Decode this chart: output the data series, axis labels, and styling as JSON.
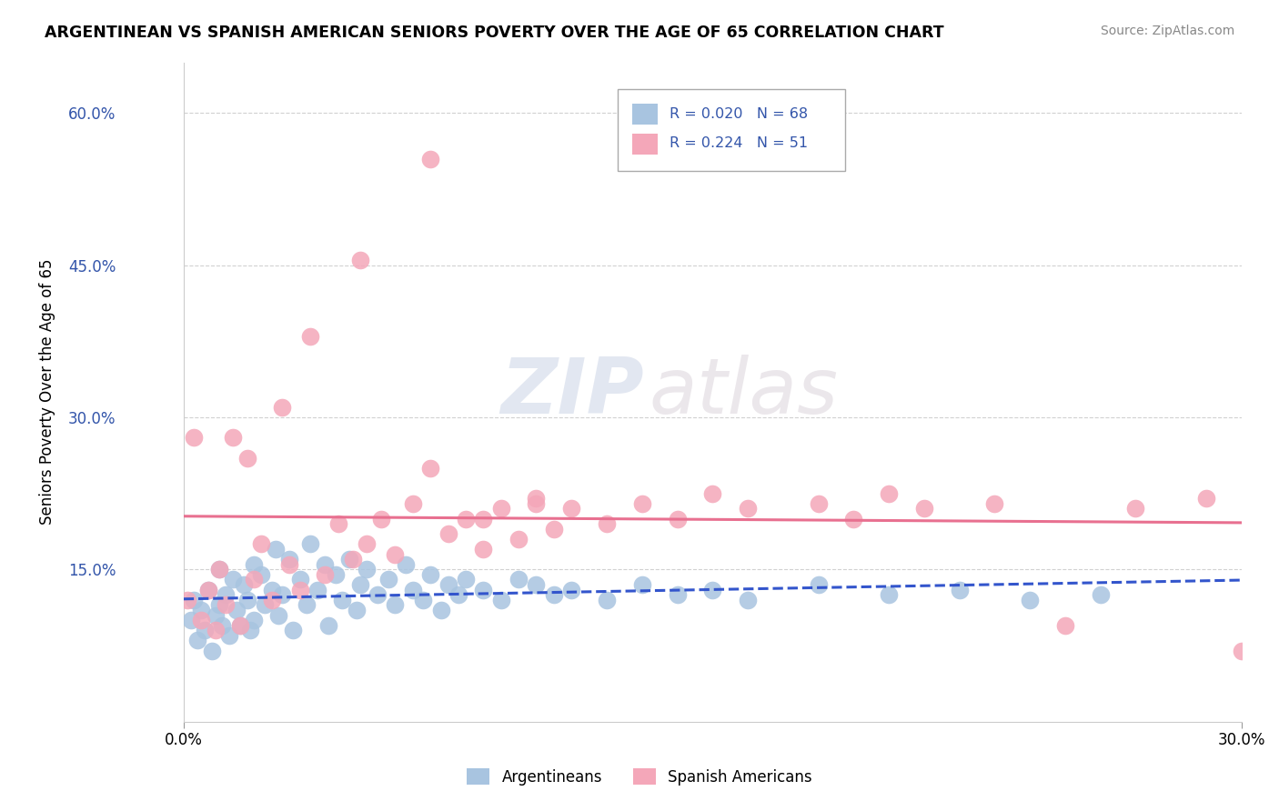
{
  "title": "ARGENTINEAN VS SPANISH AMERICAN SENIORS POVERTY OVER THE AGE OF 65 CORRELATION CHART",
  "source": "Source: ZipAtlas.com",
  "ylabel": "Seniors Poverty Over the Age of 65",
  "xlim": [
    0.0,
    0.3
  ],
  "ylim": [
    0.0,
    0.65
  ],
  "x_ticks": [
    0.0,
    0.3
  ],
  "x_tick_labels": [
    "0.0%",
    "30.0%"
  ],
  "y_ticks": [
    0.15,
    0.3,
    0.45,
    0.6
  ],
  "y_tick_labels": [
    "15.0%",
    "30.0%",
    "45.0%",
    "60.0%"
  ],
  "argentinean_color": "#a8c4e0",
  "spanish_color": "#f4a7b9",
  "argentinean_R": 0.02,
  "argentinean_N": 68,
  "spanish_R": 0.224,
  "spanish_N": 51,
  "legend_label_1": "Argentineans",
  "legend_label_2": "Spanish Americans",
  "watermark_zip": "ZIP",
  "watermark_atlas": "atlas",
  "background_color": "#ffffff",
  "grid_color": "#cccccc",
  "stat_color": "#3355aa",
  "arg_line_color": "#3355cc",
  "spa_line_color": "#e87090",
  "argentinean_x": [
    0.002,
    0.003,
    0.004,
    0.005,
    0.006,
    0.007,
    0.008,
    0.009,
    0.01,
    0.01,
    0.011,
    0.012,
    0.013,
    0.014,
    0.015,
    0.016,
    0.017,
    0.018,
    0.019,
    0.02,
    0.02,
    0.022,
    0.023,
    0.025,
    0.026,
    0.027,
    0.028,
    0.03,
    0.031,
    0.033,
    0.035,
    0.036,
    0.038,
    0.04,
    0.041,
    0.043,
    0.045,
    0.047,
    0.049,
    0.05,
    0.052,
    0.055,
    0.058,
    0.06,
    0.063,
    0.065,
    0.068,
    0.07,
    0.073,
    0.075,
    0.078,
    0.08,
    0.085,
    0.09,
    0.095,
    0.1,
    0.105,
    0.11,
    0.12,
    0.13,
    0.14,
    0.15,
    0.16,
    0.18,
    0.2,
    0.22,
    0.24,
    0.26
  ],
  "argentinean_y": [
    0.1,
    0.12,
    0.08,
    0.11,
    0.09,
    0.13,
    0.07,
    0.105,
    0.15,
    0.115,
    0.095,
    0.125,
    0.085,
    0.14,
    0.11,
    0.095,
    0.135,
    0.12,
    0.09,
    0.155,
    0.1,
    0.145,
    0.115,
    0.13,
    0.17,
    0.105,
    0.125,
    0.16,
    0.09,
    0.14,
    0.115,
    0.175,
    0.13,
    0.155,
    0.095,
    0.145,
    0.12,
    0.16,
    0.11,
    0.135,
    0.15,
    0.125,
    0.14,
    0.115,
    0.155,
    0.13,
    0.12,
    0.145,
    0.11,
    0.135,
    0.125,
    0.14,
    0.13,
    0.12,
    0.14,
    0.135,
    0.125,
    0.13,
    0.12,
    0.135,
    0.125,
    0.13,
    0.12,
    0.135,
    0.125,
    0.13,
    0.12,
    0.125
  ],
  "spanish_x": [
    0.001,
    0.003,
    0.005,
    0.007,
    0.009,
    0.01,
    0.012,
    0.014,
    0.016,
    0.018,
    0.02,
    0.022,
    0.025,
    0.028,
    0.03,
    0.033,
    0.036,
    0.04,
    0.044,
    0.048,
    0.052,
    0.056,
    0.06,
    0.065,
    0.07,
    0.075,
    0.08,
    0.085,
    0.09,
    0.095,
    0.1,
    0.105,
    0.11,
    0.12,
    0.13,
    0.14,
    0.15,
    0.16,
    0.18,
    0.19,
    0.2,
    0.21,
    0.23,
    0.25,
    0.27,
    0.29,
    0.3,
    0.05,
    0.07,
    0.085,
    0.1
  ],
  "spanish_y": [
    0.12,
    0.28,
    0.1,
    0.13,
    0.09,
    0.15,
    0.115,
    0.28,
    0.095,
    0.26,
    0.14,
    0.175,
    0.12,
    0.31,
    0.155,
    0.13,
    0.38,
    0.145,
    0.195,
    0.16,
    0.175,
    0.2,
    0.165,
    0.215,
    0.555,
    0.185,
    0.2,
    0.17,
    0.21,
    0.18,
    0.22,
    0.19,
    0.21,
    0.195,
    0.215,
    0.2,
    0.225,
    0.21,
    0.215,
    0.2,
    0.225,
    0.21,
    0.215,
    0.095,
    0.21,
    0.22,
    0.07,
    0.455,
    0.25,
    0.2,
    0.215
  ]
}
